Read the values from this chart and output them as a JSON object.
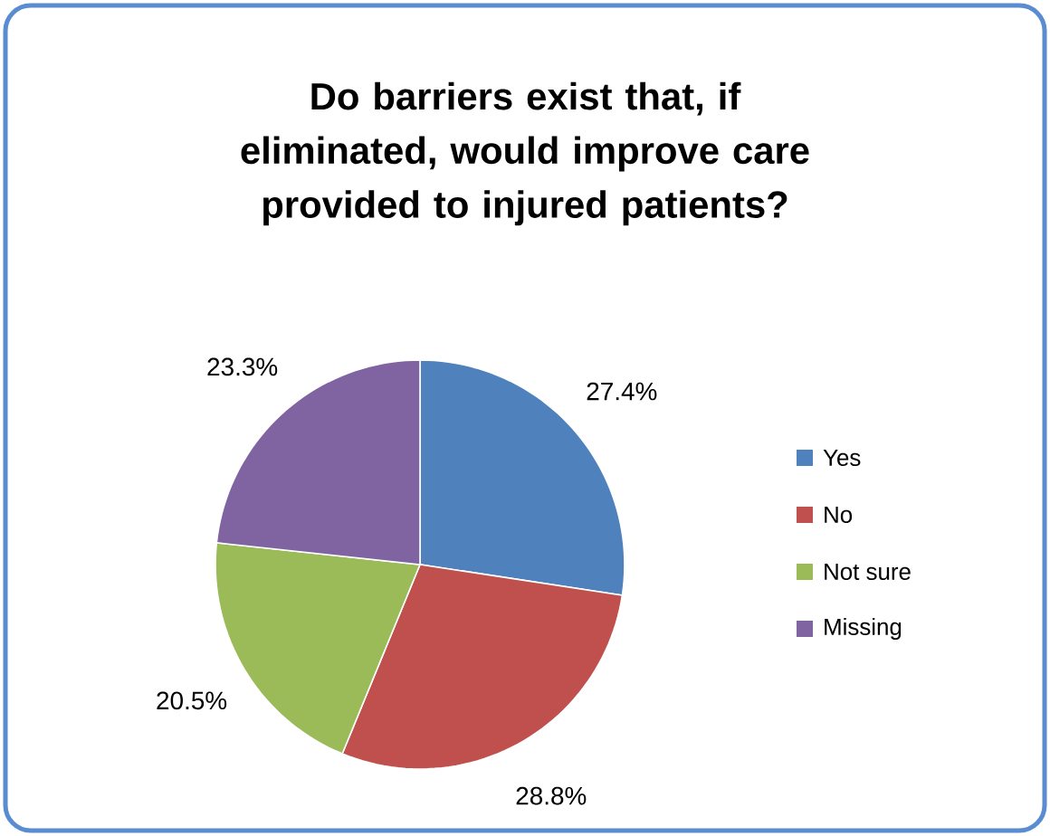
{
  "chart_data": {
    "type": "pie",
    "title": "Do barriers exist that, if eliminated, would improve care provided to injured patients?",
    "categories": [
      "Yes",
      "No",
      "Not sure",
      "Missing"
    ],
    "values": [
      27.4,
      28.8,
      20.5,
      23.3
    ],
    "colors": [
      "#4f81bd",
      "#c0504d",
      "#9bbb59",
      "#8064a2"
    ],
    "value_labels": [
      "27.4%",
      "28.8%",
      "20.5%",
      "23.3%"
    ],
    "legend": "right"
  }
}
